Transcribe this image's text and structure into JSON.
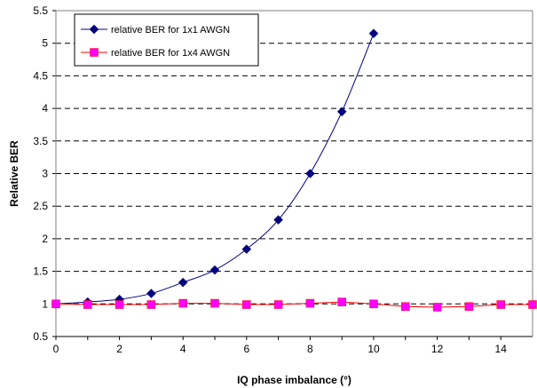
{
  "chart_data": {
    "type": "line",
    "title": "",
    "xlabel": "IQ phase imbalance (°)",
    "ylabel": "Relative BER",
    "xlim": [
      0,
      15
    ],
    "ylim": [
      0.5,
      5.5
    ],
    "xticks": [
      "0",
      "2",
      "4",
      "6",
      "8",
      "10",
      "12",
      "14"
    ],
    "yticks": [
      "0.5",
      "1",
      "1.5",
      "2",
      "2.5",
      "3",
      "3.5",
      "4",
      "4.5",
      "5",
      "5.5"
    ],
    "grid": "horizontal dashed",
    "legend_position": "top-left",
    "series": [
      {
        "name": "relative BER for 1x1 AWGN",
        "color": "#000080",
        "marker": "diamond",
        "x": [
          0,
          1,
          2,
          3,
          4,
          5,
          6,
          7,
          8,
          9,
          10
        ],
        "y": [
          1.0,
          1.03,
          1.07,
          1.16,
          1.33,
          1.52,
          1.84,
          2.29,
          3.0,
          3.95,
          5.15
        ]
      },
      {
        "name": "relative BER for 1x4 AWGN",
        "color": "#ff0000",
        "marker_color": "#ff00ff",
        "marker": "square",
        "x": [
          0,
          1,
          2,
          3,
          4,
          5,
          6,
          7,
          8,
          9,
          10,
          11,
          12,
          13,
          14,
          15
        ],
        "y": [
          1.0,
          0.99,
          0.99,
          0.99,
          1.01,
          1.01,
          0.99,
          0.99,
          1.01,
          1.03,
          1.0,
          0.96,
          0.95,
          0.96,
          0.99,
          0.99
        ]
      }
    ]
  }
}
